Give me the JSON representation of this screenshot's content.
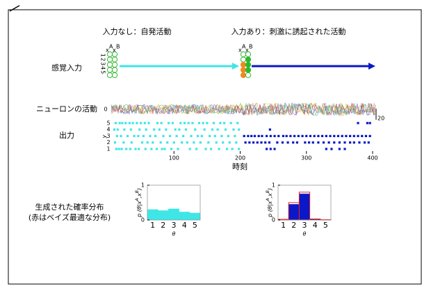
{
  "labels": {
    "spontaneous": "入力なし：自発活動",
    "evoked": "入力あり：刺激に誘起された活動",
    "sensory_input": "感覚入力",
    "neuron_activity": "ニューロンの活動",
    "output": "出力",
    "generated_dist": "生成された確率分布",
    "note": "(赤はベイズ最適な分布)"
  },
  "input": {
    "x": "x",
    "a": "A",
    "b": "B",
    "indices": "12345"
  },
  "activity": {
    "zero_label": "0",
    "scale_label": "20"
  },
  "raster": {
    "ylabel": "y",
    "rows": [
      1,
      2,
      3,
      4,
      5
    ],
    "xlim": [
      0,
      400
    ],
    "xticks": [
      100,
      200,
      300,
      400
    ],
    "xlabel": "時刻",
    "series": [
      {
        "color": "#3ee6e6",
        "spikes": [
          [
            13,
            17,
            21,
            28,
            34,
            42,
            47,
            57,
            66,
            74,
            82,
            86,
            96,
            106,
            124,
            134,
            148,
            156,
            168,
            180,
            188,
            198
          ],
          [
            11,
            24,
            36,
            52,
            60,
            68,
            80,
            90,
            100,
            112,
            120,
            130,
            140,
            152,
            164,
            174,
            184,
            194
          ],
          [
            14,
            20,
            30,
            40,
            46,
            54,
            64,
            72,
            84,
            94,
            104,
            114,
            126,
            136,
            142,
            154,
            162,
            172,
            182,
            192
          ],
          [
            10,
            15,
            25,
            35,
            48,
            58,
            70,
            78,
            88,
            102,
            108,
            118,
            132,
            146,
            158,
            166,
            178,
            190,
            198
          ],
          [
            12,
            18,
            22,
            27,
            33,
            38,
            44,
            50,
            56,
            62,
            75,
            81,
            92,
            98,
            110,
            116,
            122,
            128,
            138,
            144,
            150,
            160,
            170,
            176,
            186,
            196
          ]
        ]
      },
      {
        "color": "#0a18c8",
        "spikes": [
          [
            240,
            246,
            252,
            330,
            338,
            350,
            358
          ],
          [
            208,
            214,
            220,
            226,
            232,
            238,
            244,
            256,
            264,
            272,
            280,
            286,
            298,
            304,
            310,
            318,
            326,
            334,
            342,
            350,
            358,
            366,
            372,
            380,
            388,
            394
          ],
          [
            206,
            212,
            217,
            222,
            228,
            233,
            240,
            246,
            252,
            258,
            265,
            270,
            276,
            282,
            288,
            294,
            300,
            306,
            312,
            318,
            324,
            330,
            336,
            342,
            348,
            354,
            360,
            366,
            372,
            378,
            384,
            390,
            396
          ],
          [
            245
          ],
          [
            378,
            392,
            396
          ]
        ]
      }
    ]
  },
  "chart_data": [
    {
      "type": "bar",
      "categories": [
        "1",
        "2",
        "3",
        "4",
        "5"
      ],
      "ylabel_parts": [
        "p (θ|x",
        "A",
        ",x",
        "B",
        ")"
      ],
      "xlabel": "θ",
      "ylim": [
        0,
        1
      ],
      "yticks": [
        0,
        1
      ],
      "series": [
        {
          "color": "#3ee6e6",
          "fill": true,
          "values": [
            0.3,
            0.27,
            0.32,
            0.23,
            0.2
          ]
        }
      ]
    },
    {
      "type": "bar",
      "categories": [
        "1",
        "2",
        "3",
        "4",
        "5"
      ],
      "ylabel_parts": [
        "p (θ|x",
        "A",
        ",x",
        "B",
        ")"
      ],
      "xlabel": "θ",
      "ylim": [
        0,
        1
      ],
      "yticks": [
        0,
        1
      ],
      "series": [
        {
          "color": "#0a18c8",
          "fill": true,
          "values": [
            0.02,
            0.45,
            0.75,
            0.03,
            0.0
          ]
        },
        {
          "color": "#e02020",
          "fill": false,
          "values": [
            0.02,
            0.5,
            0.8,
            0.03,
            0.01
          ]
        }
      ]
    }
  ]
}
